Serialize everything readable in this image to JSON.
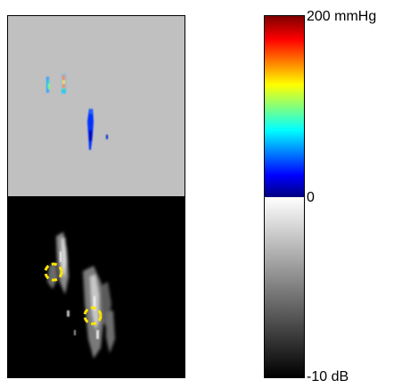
{
  "colorbar": {
    "pressure_max_label": "200 mmHg",
    "zero_label": "0",
    "db_min_label": "-10 dB",
    "colors": {
      "pressure_gradient": [
        "#000080",
        "#0000ff",
        "#00ffff",
        "#ffff00",
        "#ff0000",
        "#800000"
      ],
      "db_gradient": [
        "#ffffff",
        "#000000"
      ]
    }
  },
  "pressure_map": {
    "background": "#c0c0c0"
  },
  "bmode_image": {
    "background": "#000000",
    "marker_color": "#ffe600",
    "marker_count": 2
  }
}
